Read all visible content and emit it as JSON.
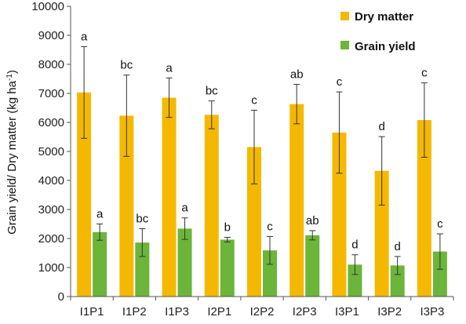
{
  "chart_data": {
    "type": "bar",
    "categories": [
      "I1P1",
      "I1P2",
      "I1P3",
      "I2P1",
      "I2P2",
      "I2P3",
      "I3P1",
      "I3P2",
      "I3P3"
    ],
    "ylabel": "Grain yield/ Dry matter (kg ha-1)",
    "ylabel_main": "Grain yield/ Dry matter (kg ha",
    "ylabel_sup": "-1",
    "ylabel_end": ")",
    "ylim": [
      0,
      10000
    ],
    "yticks": [
      "0",
      "1000",
      "2000",
      "3000",
      "4000",
      "5000",
      "6000",
      "7000",
      "8000",
      "9000",
      "10000"
    ],
    "grid": false,
    "legend_position": "top-right",
    "series": [
      {
        "name": "Dry matter",
        "color": "#f5b800",
        "values": [
          7030,
          6230,
          6850,
          6260,
          5150,
          6630,
          5650,
          4330,
          6080
        ],
        "errors": [
          1580,
          1400,
          680,
          480,
          1270,
          680,
          1400,
          1180,
          1280
        ],
        "letters": [
          "a",
          "bc",
          "a",
          "bc",
          "c",
          "ab",
          "c",
          "d",
          "c"
        ]
      },
      {
        "name": "Grain yield",
        "color": "#6bb53a",
        "values": [
          2220,
          1860,
          2340,
          1960,
          1590,
          2110,
          1100,
          1070,
          1550
        ],
        "errors": [
          280,
          480,
          370,
          80,
          480,
          160,
          340,
          310,
          610
        ],
        "letters": [
          "a",
          "bc",
          "a",
          "b",
          "c",
          "ab",
          "d",
          "d",
          "c"
        ]
      }
    ]
  }
}
